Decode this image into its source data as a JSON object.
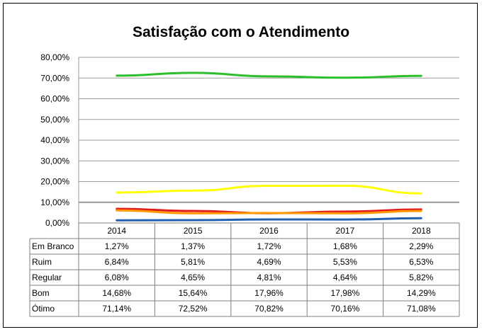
{
  "chart_data": {
    "type": "line",
    "title": "Satisfação com o Atendimento",
    "categories": [
      "2014",
      "2015",
      "2016",
      "2017",
      "2018"
    ],
    "ylim": [
      0,
      80
    ],
    "yticks": [
      "0,00%",
      "10,00%",
      "20,00%",
      "30,00%",
      "40,00%",
      "50,00%",
      "60,00%",
      "70,00%",
      "80,00%"
    ],
    "grid": true,
    "legend": "data-table",
    "series": [
      {
        "name": "Em Branco",
        "color": "#1f5fb4",
        "values": [
          1.27,
          1.37,
          1.72,
          1.68,
          2.29
        ],
        "labels": [
          "1,27%",
          "1,37%",
          "1,72%",
          "1,68%",
          "2,29%"
        ]
      },
      {
        "name": "Ruim",
        "color": "#e31a1c",
        "values": [
          6.84,
          5.81,
          4.69,
          5.53,
          6.53
        ],
        "labels": [
          "6,84%",
          "5,81%",
          "4,69%",
          "5,53%",
          "6,53%"
        ]
      },
      {
        "name": "Regular",
        "color": "#ff9900",
        "values": [
          6.08,
          4.65,
          4.81,
          4.64,
          5.82
        ],
        "labels": [
          "6,08%",
          "4,65%",
          "4,81%",
          "4,64%",
          "5,82%"
        ]
      },
      {
        "name": "Bom",
        "color": "#ffff00",
        "values": [
          14.68,
          15.64,
          17.96,
          17.98,
          14.29
        ],
        "labels": [
          "14,68%",
          "15,64%",
          "17,96%",
          "17,98%",
          "14,29%"
        ]
      },
      {
        "name": "Ótimo",
        "color": "#2bbf2b",
        "values": [
          71.14,
          72.52,
          70.82,
          70.16,
          71.08
        ],
        "labels": [
          "71,14%",
          "72,52%",
          "70,82%",
          "70,16%",
          "71,08%"
        ]
      }
    ]
  }
}
